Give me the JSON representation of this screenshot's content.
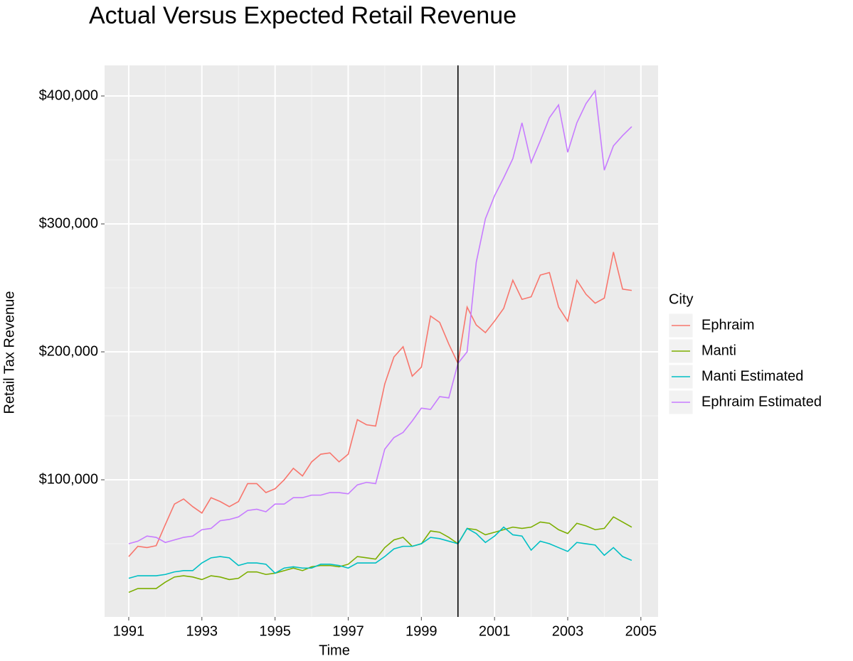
{
  "chart_data": {
    "type": "line",
    "title": "Actual Versus Expected Retail Revenue",
    "x_label": "Time",
    "y_label": "Retail Tax Revenue",
    "legend_title": "City",
    "legend": "right",
    "grid": true,
    "background": "#ebebeb",
    "vline": 2000,
    "x": [
      1991,
      1991.25,
      1991.5,
      1991.75,
      1992,
      1992.25,
      1992.5,
      1992.75,
      1993,
      1993.25,
      1993.5,
      1993.75,
      1994,
      1994.25,
      1994.5,
      1994.75,
      1995,
      1995.25,
      1995.5,
      1995.75,
      1996,
      1996.25,
      1996.5,
      1996.75,
      1997,
      1997.25,
      1997.5,
      1997.75,
      1998,
      1998.25,
      1998.5,
      1998.75,
      1999,
      1999.25,
      1999.5,
      1999.75,
      2000,
      2000.25,
      2000.5,
      2000.75,
      2001,
      2001.25,
      2001.5,
      2001.75,
      2002,
      2002.25,
      2002.5,
      2002.75,
      2003,
      2003.25,
      2003.5,
      2003.75,
      2004,
      2004.25,
      2004.5,
      2004.75
    ],
    "xlim": [
      1990.34,
      2005.47
    ],
    "xticks": [
      1991,
      1993,
      1995,
      1997,
      1999,
      2001,
      2003,
      2005
    ],
    "ylim": [
      -7200,
      423900
    ],
    "yticks": [
      {
        "value": 100000,
        "label": "$100,000"
      },
      {
        "value": 200000,
        "label": "$200,000"
      },
      {
        "value": 300000,
        "label": "$300,000"
      },
      {
        "value": 400000,
        "label": "$400,000"
      }
    ],
    "series": [
      {
        "name": "Ephraim",
        "color": "#F8766D",
        "values": [
          40000,
          48000,
          47000,
          48500,
          65000,
          81000,
          85000,
          79000,
          74000,
          86000,
          83000,
          79000,
          83000,
          97000,
          97000,
          90000,
          93000,
          100000,
          109000,
          103000,
          114000,
          120000,
          121000,
          114000,
          120000,
          147000,
          143000,
          142000,
          175000,
          196000,
          204000,
          181000,
          188000,
          228000,
          223000,
          206000,
          191000,
          235000,
          221000,
          215000,
          224000,
          234000,
          256000,
          241000,
          243000,
          260000,
          262000,
          235000,
          224000,
          256000,
          245000,
          238000,
          242000,
          278000,
          249000,
          248000
        ]
      },
      {
        "name": "Manti",
        "color": "#7CAE00",
        "values": [
          12000,
          15000,
          15000,
          15000,
          20000,
          24000,
          25000,
          24000,
          22000,
          25000,
          24000,
          22000,
          23000,
          28000,
          28000,
          26000,
          27000,
          29000,
          31000,
          29000,
          32000,
          33000,
          33000,
          32000,
          34000,
          40000,
          39000,
          38000,
          47000,
          53000,
          55000,
          48000,
          50000,
          60000,
          59000,
          55000,
          50000,
          62000,
          61000,
          57000,
          59000,
          61000,
          63000,
          62000,
          63000,
          67000,
          66000,
          61000,
          58000,
          66000,
          64000,
          61000,
          62000,
          71000,
          67000,
          63000
        ]
      },
      {
        "name": "Manti Estimated",
        "color": "#00BFC4",
        "values": [
          23000,
          25000,
          25000,
          25000,
          26000,
          28000,
          29000,
          29000,
          35000,
          39000,
          40000,
          39000,
          33000,
          35000,
          35000,
          34000,
          27000,
          31000,
          32000,
          31000,
          31000,
          34000,
          34000,
          33000,
          31000,
          35000,
          35000,
          35000,
          40000,
          46000,
          48000,
          48000,
          50000,
          55000,
          54000,
          52000,
          50000,
          62000,
          58000,
          51000,
          56000,
          63000,
          57000,
          56000,
          45000,
          52000,
          50000,
          47000,
          44000,
          51000,
          50000,
          49000,
          41000,
          47000,
          40000,
          37000
        ]
      },
      {
        "name": "Ephraim Estimated",
        "color": "#C77CFF",
        "values": [
          50000,
          52000,
          56000,
          55000,
          51000,
          53000,
          55000,
          56000,
          61000,
          62000,
          68000,
          69000,
          71000,
          76000,
          77000,
          75000,
          81000,
          81000,
          86000,
          86000,
          88000,
          88000,
          90000,
          90000,
          89000,
          96000,
          98000,
          97000,
          124000,
          133000,
          137000,
          146000,
          156000,
          155000,
          165000,
          164000,
          191000,
          200000,
          270000,
          304000,
          322000,
          336000,
          351000,
          379000,
          348000,
          365000,
          383000,
          393000,
          356000,
          379000,
          394000,
          404000,
          342000,
          361000,
          369000,
          376000
        ]
      }
    ]
  }
}
